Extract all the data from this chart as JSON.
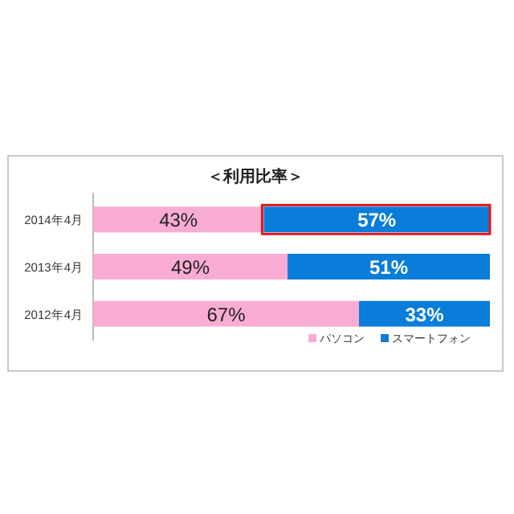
{
  "chart_data": {
    "type": "bar",
    "orientation": "horizontal",
    "stacked": true,
    "title": "＜利用比率＞",
    "categories": [
      "2014年4月",
      "2013年4月",
      "2012年4月"
    ],
    "series": [
      {
        "name": "パソコン",
        "color": "#f9acd3",
        "values": [
          43,
          49,
          67
        ],
        "value_labels": [
          "43%",
          "49%",
          "67%"
        ]
      },
      {
        "name": "スマートフォン",
        "color": "#0a7ddb",
        "values": [
          57,
          51,
          33
        ],
        "value_labels": [
          "57%",
          "51%",
          "33%"
        ]
      }
    ],
    "legend": "bottom right"
  }
}
